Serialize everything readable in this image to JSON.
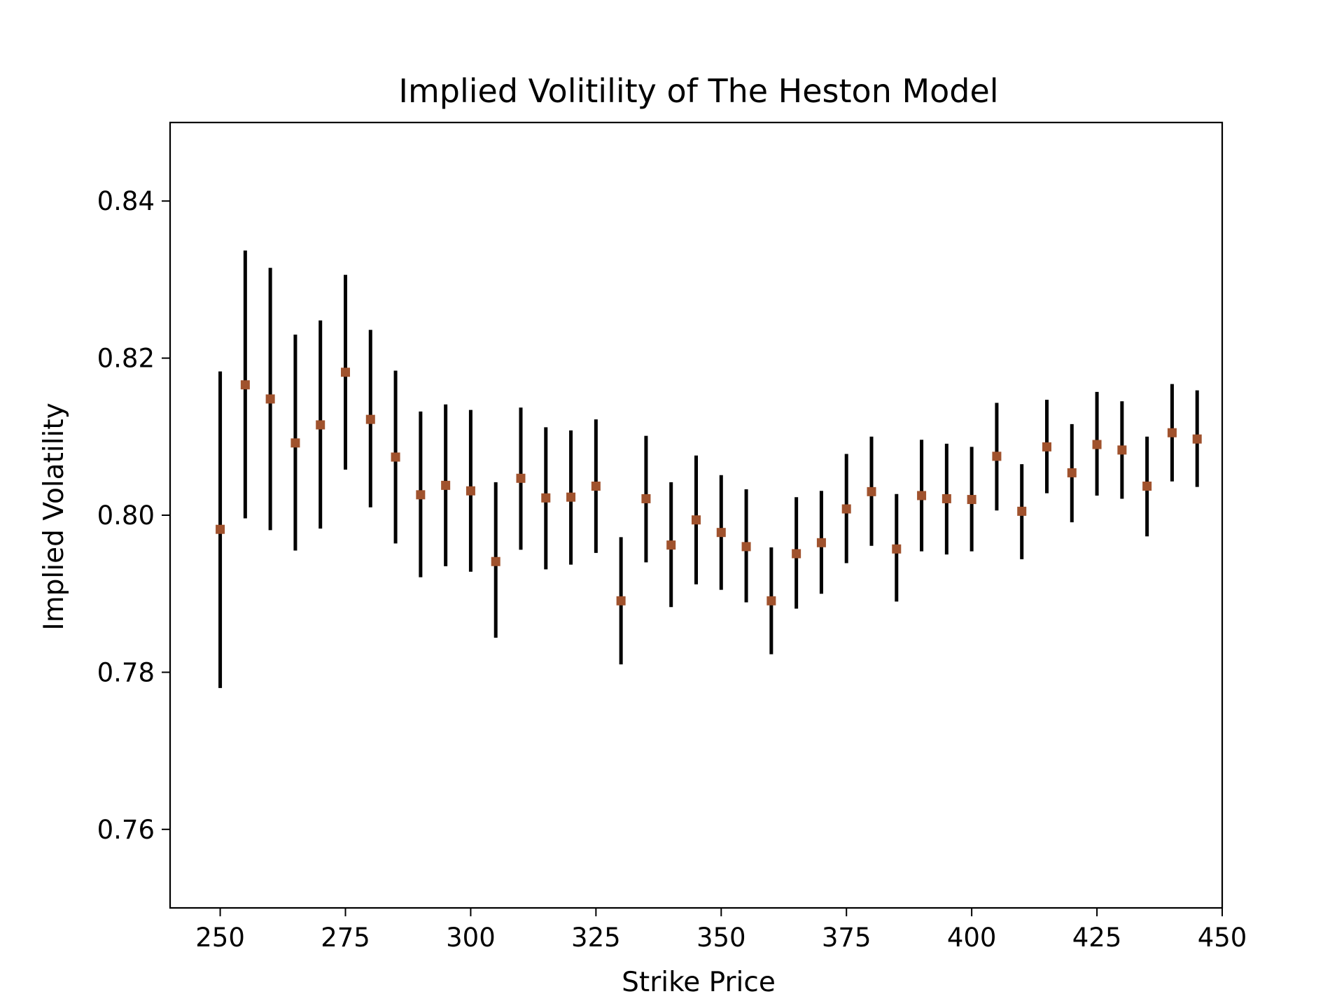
{
  "chart_data": {
    "type": "scatter",
    "title": "Implied Volitility of The Heston Model",
    "xlabel": "Strike Price",
    "ylabel": "Implied Volatility",
    "xlim": [
      240,
      450
    ],
    "ylim": [
      0.75,
      0.85
    ],
    "xticks": [
      "250",
      "275",
      "300",
      "325",
      "350",
      "375",
      "400",
      "425",
      "450"
    ],
    "yticks": [
      "0.76",
      "0.78",
      "0.80",
      "0.82",
      "0.84"
    ],
    "grid": false,
    "legend": false,
    "colors": {
      "marker": "#a0522d",
      "errorbar": "#000000",
      "axes": "#000000"
    },
    "points": [
      {
        "x": 250,
        "y": 0.7982,
        "low": 0.778,
        "high": 0.8183
      },
      {
        "x": 255,
        "y": 0.8166,
        "low": 0.7996,
        "high": 0.8337
      },
      {
        "x": 260,
        "y": 0.8148,
        "low": 0.7981,
        "high": 0.8315
      },
      {
        "x": 265,
        "y": 0.8092,
        "low": 0.7955,
        "high": 0.823
      },
      {
        "x": 270,
        "y": 0.8115,
        "low": 0.7983,
        "high": 0.8248
      },
      {
        "x": 275,
        "y": 0.8182,
        "low": 0.8058,
        "high": 0.8306
      },
      {
        "x": 280,
        "y": 0.8122,
        "low": 0.801,
        "high": 0.8236
      },
      {
        "x": 285,
        "y": 0.8074,
        "low": 0.7964,
        "high": 0.8184
      },
      {
        "x": 290,
        "y": 0.8026,
        "low": 0.7921,
        "high": 0.8132
      },
      {
        "x": 295,
        "y": 0.8038,
        "low": 0.7935,
        "high": 0.8141
      },
      {
        "x": 300,
        "y": 0.8031,
        "low": 0.7928,
        "high": 0.8134
      },
      {
        "x": 305,
        "y": 0.7941,
        "low": 0.7844,
        "high": 0.8042
      },
      {
        "x": 310,
        "y": 0.8047,
        "low": 0.7956,
        "high": 0.8137
      },
      {
        "x": 315,
        "y": 0.8022,
        "low": 0.7931,
        "high": 0.8112
      },
      {
        "x": 320,
        "y": 0.8023,
        "low": 0.7937,
        "high": 0.8108
      },
      {
        "x": 325,
        "y": 0.8037,
        "low": 0.7952,
        "high": 0.8122
      },
      {
        "x": 330,
        "y": 0.7891,
        "low": 0.781,
        "high": 0.7972
      },
      {
        "x": 335,
        "y": 0.8021,
        "low": 0.794,
        "high": 0.8101
      },
      {
        "x": 340,
        "y": 0.7962,
        "low": 0.7883,
        "high": 0.8042
      },
      {
        "x": 345,
        "y": 0.7994,
        "low": 0.7912,
        "high": 0.8076
      },
      {
        "x": 350,
        "y": 0.7978,
        "low": 0.7905,
        "high": 0.8051
      },
      {
        "x": 355,
        "y": 0.796,
        "low": 0.7889,
        "high": 0.8033
      },
      {
        "x": 360,
        "y": 0.7891,
        "low": 0.7823,
        "high": 0.7959
      },
      {
        "x": 365,
        "y": 0.7951,
        "low": 0.7881,
        "high": 0.8023
      },
      {
        "x": 370,
        "y": 0.7965,
        "low": 0.79,
        "high": 0.8031
      },
      {
        "x": 375,
        "y": 0.8008,
        "low": 0.7939,
        "high": 0.8078
      },
      {
        "x": 380,
        "y": 0.803,
        "low": 0.7961,
        "high": 0.81
      },
      {
        "x": 385,
        "y": 0.7957,
        "low": 0.789,
        "high": 0.8027
      },
      {
        "x": 390,
        "y": 0.8025,
        "low": 0.7954,
        "high": 0.8096
      },
      {
        "x": 395,
        "y": 0.8021,
        "low": 0.795,
        "high": 0.8091
      },
      {
        "x": 400,
        "y": 0.802,
        "low": 0.7954,
        "high": 0.8087
      },
      {
        "x": 405,
        "y": 0.8075,
        "low": 0.8006,
        "high": 0.8143
      },
      {
        "x": 410,
        "y": 0.8005,
        "low": 0.7944,
        "high": 0.8065
      },
      {
        "x": 415,
        "y": 0.8087,
        "low": 0.8028,
        "high": 0.8147
      },
      {
        "x": 420,
        "y": 0.8054,
        "low": 0.7991,
        "high": 0.8116
      },
      {
        "x": 425,
        "y": 0.809,
        "low": 0.8025,
        "high": 0.8157
      },
      {
        "x": 430,
        "y": 0.8083,
        "low": 0.8021,
        "high": 0.8145
      },
      {
        "x": 435,
        "y": 0.8037,
        "low": 0.7973,
        "high": 0.81
      },
      {
        "x": 440,
        "y": 0.8105,
        "low": 0.8043,
        "high": 0.8167
      },
      {
        "x": 445,
        "y": 0.8097,
        "low": 0.8036,
        "high": 0.8159
      }
    ]
  }
}
